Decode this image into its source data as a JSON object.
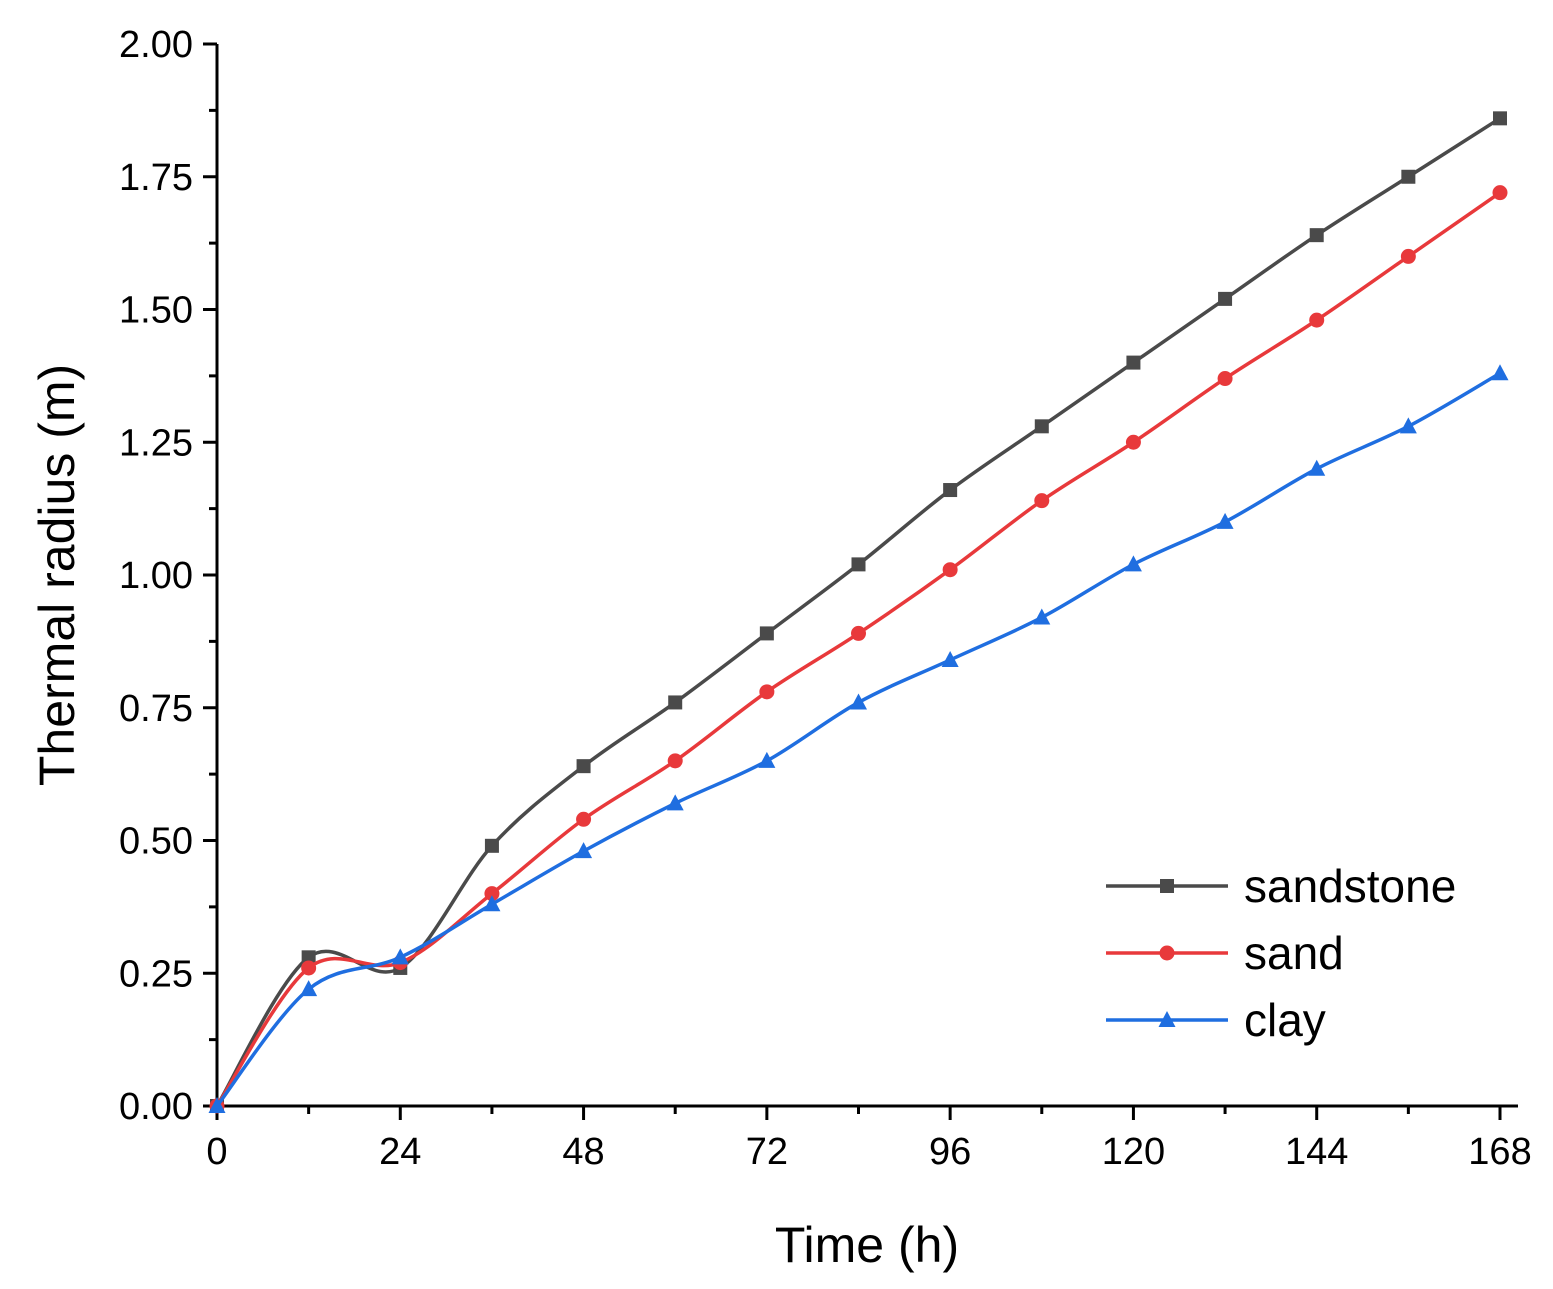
{
  "chart_data": {
    "type": "line",
    "title": "",
    "xlabel": "Time (h)",
    "ylabel": "Thermal radius (m)",
    "xlim": [
      0,
      170
    ],
    "ylim": [
      0,
      2.0
    ],
    "x_ticks": [
      0,
      24,
      48,
      72,
      96,
      120,
      144,
      168
    ],
    "x_tick_labels": [
      "0",
      "24",
      "48",
      "72",
      "96",
      "120",
      "144",
      "168"
    ],
    "y_ticks": [
      0,
      0.25,
      0.5,
      0.75,
      1.0,
      1.25,
      1.5,
      1.75,
      2.0
    ],
    "y_tick_labels": [
      "0.00",
      "0.25",
      "0.50",
      "0.75",
      "1.00",
      "1.25",
      "1.50",
      "1.75",
      "2.00"
    ],
    "x": [
      0,
      12,
      24,
      36,
      48,
      60,
      72,
      84,
      96,
      108,
      120,
      132,
      144,
      156,
      168
    ],
    "legend_position": "bottom-right",
    "grid": false,
    "series": [
      {
        "name": "sandstone",
        "color": "#4a4a4a",
        "marker": "square",
        "values": [
          0.0,
          0.28,
          0.26,
          0.49,
          0.64,
          0.76,
          0.89,
          1.02,
          1.16,
          1.28,
          1.4,
          1.52,
          1.64,
          1.75,
          1.86
        ]
      },
      {
        "name": "sand",
        "color": "#e8393b",
        "marker": "circle",
        "values": [
          0.0,
          0.26,
          0.27,
          0.4,
          0.54,
          0.65,
          0.78,
          0.89,
          1.01,
          1.14,
          1.25,
          1.37,
          1.48,
          1.6,
          1.72
        ]
      },
      {
        "name": "clay",
        "color": "#1f6ee0",
        "marker": "triangle",
        "values": [
          0.0,
          0.22,
          0.28,
          0.38,
          0.48,
          0.57,
          0.65,
          0.76,
          0.84,
          0.92,
          1.02,
          1.1,
          1.2,
          1.28,
          1.38
        ]
      }
    ]
  }
}
